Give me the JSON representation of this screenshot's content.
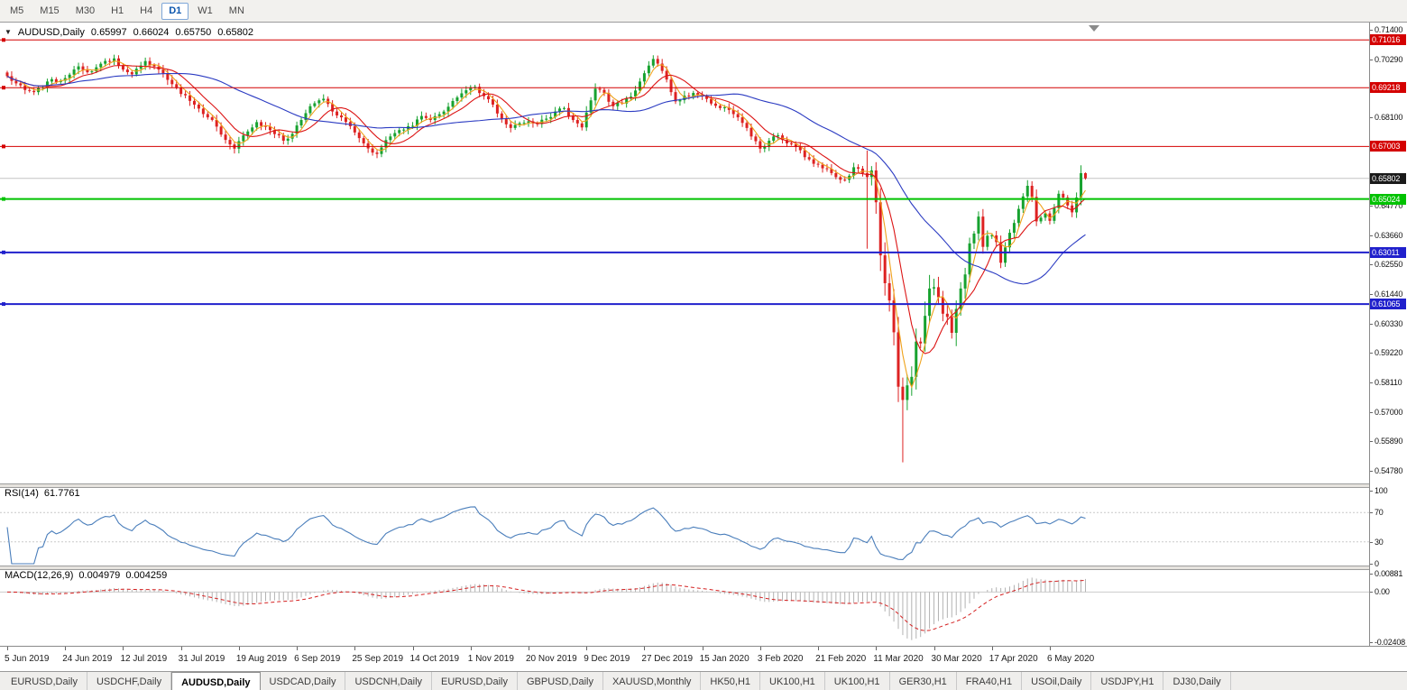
{
  "toolbar": {
    "periods": [
      "M5",
      "M15",
      "M30",
      "H1",
      "H4",
      "D1",
      "W1",
      "MN"
    ],
    "active_period": "D1"
  },
  "chart": {
    "symbol_label": "AUDUSD,Daily",
    "ohlc": {
      "open": "0.65997",
      "high": "0.66024",
      "low": "0.65750",
      "close": "0.65802"
    },
    "price_axis_ticks": [
      "0.71400",
      "0.70290",
      "0.68100",
      "0.64770",
      "0.63660",
      "0.62550",
      "0.61440",
      "0.60330",
      "0.59220",
      "0.58110",
      "0.57000",
      "0.55890",
      "0.54780"
    ],
    "hlines": [
      {
        "label": "0.71016",
        "value": 0.71016,
        "color": "#d40000",
        "thickness": 1
      },
      {
        "label": "0.69218",
        "value": 0.69218,
        "color": "#d40000",
        "thickness": 1
      },
      {
        "label": "0.67003",
        "value": 0.67003,
        "color": "#d40000",
        "thickness": 1
      },
      {
        "label": "0.65024",
        "value": 0.65024,
        "color": "#00c200",
        "thickness": 2
      },
      {
        "label": "0.63011",
        "value": 0.63011,
        "color": "#2020cc",
        "thickness": 2
      },
      {
        "label": "0.61065",
        "value": 0.61065,
        "color": "#2020cc",
        "thickness": 2
      }
    ],
    "current_price": {
      "label": "0.65802",
      "value": 0.65802,
      "badge_color": "#1a1a1a",
      "line_color": "#c4c4c4"
    },
    "time_axis_labels": [
      "5 Jun 2019",
      "24 Jun 2019",
      "12 Jul 2019",
      "31 Jul 2019",
      "19 Aug 2019",
      "6 Sep 2019",
      "25 Sep 2019",
      "14 Oct 2019",
      "1 Nov 2019",
      "20 Nov 2019",
      "9 Dec 2019",
      "27 Dec 2019",
      "15 Jan 2020",
      "3 Feb 2020",
      "21 Feb 2020",
      "11 Mar 2020",
      "30 Mar 2020",
      "17 Apr 2020",
      "6 May 2020"
    ]
  },
  "rsi": {
    "label": "RSI(14)",
    "value": "61.7761",
    "color": "#4a7ebb",
    "ticks": [
      {
        "label": "100",
        "value": 100
      },
      {
        "label": "70",
        "value": 70
      },
      {
        "label": "30",
        "value": 30
      },
      {
        "label": "0",
        "value": 0
      }
    ],
    "level_lines": [
      70,
      30
    ]
  },
  "macd": {
    "label": "MACD(12,26,9)",
    "value": "0.004979",
    "signal_value": "0.004259",
    "histogram_color": "#b2b2b2",
    "signal_color": "#d42020",
    "ticks": [
      {
        "label": "0.00881",
        "value": 0.00881
      },
      {
        "label": "0.00",
        "value": 0
      },
      {
        "label": "-0.02408",
        "value": -0.02408
      }
    ]
  },
  "tabs": {
    "active_index": 2,
    "items": [
      "EURUSD,Daily",
      "USDCHF,Daily",
      "AUDUSD,Daily",
      "USDCAD,Daily",
      "USDCNH,Daily",
      "EURUSD,Daily",
      "GBPUSD,Daily",
      "XAUUSD,Monthly",
      "HK50,H1",
      "UK100,H1",
      "UK100,H1",
      "GER30,H1",
      "FRA40,H1",
      "USOil,Daily",
      "USDJPY,H1",
      "DJ30,Daily"
    ],
    "active": "AUDUSD,Daily"
  },
  "chart_data": {
    "type": "candlestick",
    "symbol": "AUDUSD",
    "timeframe": "Daily",
    "title": "AUDUSD,Daily",
    "last_bar": {
      "open": 0.65997,
      "high": 0.66024,
      "low": 0.6575,
      "close": 0.65802
    },
    "bar_count": 243,
    "bars_per_time_tick": 13,
    "price_range": {
      "axis_top": 0.714,
      "axis_bottom": 0.5478
    },
    "horizontal_levels": [
      0.71016,
      0.69218,
      0.67003,
      0.65024,
      0.63011,
      0.61065
    ],
    "rsi_reading": 61.7761,
    "macd_reading": 0.004979,
    "macd_signal_reading": 0.004259,
    "up_color": "#17a22f",
    "down_color": "#dd2222",
    "moving_averages": [
      {
        "period": 4,
        "color": "#efa21a"
      },
      {
        "period": 9,
        "color": "#dc1414"
      },
      {
        "period": 34,
        "color": "#2b3bc2"
      }
    ],
    "rsi_period": 14,
    "macd_params": [
      12,
      26,
      9
    ],
    "overrides": {
      "193": {
        "high": 0.6685,
        "low": 0.6315
      },
      "201": {
        "low": 0.551
      },
      "242": {
        "high": 0.66024,
        "low": 0.6575
      }
    },
    "close_path": [
      [
        0,
        0.6965
      ],
      [
        2,
        0.6938
      ],
      [
        4,
        0.6913
      ],
      [
        6,
        0.6905
      ],
      [
        9,
        0.6945
      ],
      [
        13,
        0.6958
      ],
      [
        16,
        0.7002
      ],
      [
        18,
        0.698
      ],
      [
        21,
        0.7012
      ],
      [
        24,
        0.7032
      ],
      [
        26,
        0.699
      ],
      [
        28,
        0.6972
      ],
      [
        31,
        0.7022
      ],
      [
        34,
        0.699
      ],
      [
        37,
        0.6935
      ],
      [
        39,
        0.6898
      ],
      [
        41,
        0.6872
      ],
      [
        43,
        0.6843
      ],
      [
        45,
        0.681
      ],
      [
        47,
        0.6775
      ],
      [
        49,
        0.6725
      ],
      [
        51,
        0.6692
      ],
      [
        53,
        0.6742
      ],
      [
        56,
        0.6792
      ],
      [
        59,
        0.6762
      ],
      [
        62,
        0.6722
      ],
      [
        64,
        0.6748
      ],
      [
        66,
        0.68
      ],
      [
        68,
        0.6852
      ],
      [
        71,
        0.688
      ],
      [
        73,
        0.6832
      ],
      [
        75,
        0.681
      ],
      [
        78,
        0.6753
      ],
      [
        80,
        0.6712
      ],
      [
        83,
        0.6672
      ],
      [
        86,
        0.6738
      ],
      [
        88,
        0.6762
      ],
      [
        91,
        0.6778
      ],
      [
        93,
        0.6815
      ],
      [
        95,
        0.68
      ],
      [
        97,
        0.6822
      ],
      [
        99,
        0.685
      ],
      [
        101,
        0.6885
      ],
      [
        103,
        0.6912
      ],
      [
        105,
        0.6925
      ],
      [
        107,
        0.689
      ],
      [
        109,
        0.6858
      ],
      [
        111,
        0.6805
      ],
      [
        113,
        0.677
      ],
      [
        115,
        0.6788
      ],
      [
        117,
        0.6795
      ],
      [
        119,
        0.6785
      ],
      [
        121,
        0.6805
      ],
      [
        123,
        0.6832
      ],
      [
        125,
        0.6845
      ],
      [
        127,
        0.68
      ],
      [
        129,
        0.6772
      ],
      [
        130,
        0.6828
      ],
      [
        132,
        0.6918
      ],
      [
        134,
        0.6902
      ],
      [
        136,
        0.6852
      ],
      [
        138,
        0.6862
      ],
      [
        140,
        0.6888
      ],
      [
        142,
        0.6945
      ],
      [
        144,
        0.7005
      ],
      [
        145,
        0.703
      ],
      [
        147,
        0.6985
      ],
      [
        149,
        0.6905
      ],
      [
        150,
        0.687
      ],
      [
        152,
        0.6892
      ],
      [
        154,
        0.6902
      ],
      [
        156,
        0.689
      ],
      [
        158,
        0.6862
      ],
      [
        160,
        0.6845
      ],
      [
        162,
        0.6838
      ],
      [
        164,
        0.681
      ],
      [
        166,
        0.677
      ],
      [
        168,
        0.672
      ],
      [
        169,
        0.6692
      ],
      [
        171,
        0.6722
      ],
      [
        173,
        0.6742
      ],
      [
        175,
        0.6712
      ],
      [
        177,
        0.6698
      ],
      [
        179,
        0.666
      ],
      [
        181,
        0.6635
      ],
      [
        183,
        0.6618
      ],
      [
        185,
        0.66
      ],
      [
        187,
        0.6575
      ],
      [
        189,
        0.659
      ],
      [
        190,
        0.6622
      ],
      [
        192,
        0.66
      ],
      [
        193,
        0.6585
      ],
      [
        194,
        0.661
      ],
      [
        195,
        0.649
      ],
      [
        196,
        0.629
      ],
      [
        197,
        0.6185
      ],
      [
        198,
        0.612
      ],
      [
        199,
        0.6
      ],
      [
        200,
        0.5795
      ],
      [
        201,
        0.5745
      ],
      [
        202,
        0.58
      ],
      [
        203,
        0.5832
      ],
      [
        204,
        0.5965
      ],
      [
        205,
        0.5958
      ],
      [
        206,
        0.6062
      ],
      [
        207,
        0.6165
      ],
      [
        208,
        0.617
      ],
      [
        209,
        0.6132
      ],
      [
        210,
        0.607
      ],
      [
        211,
        0.6058
      ],
      [
        212,
        0.5998
      ],
      [
        213,
        0.6088
      ],
      [
        214,
        0.6165
      ],
      [
        215,
        0.6218
      ],
      [
        216,
        0.6335
      ],
      [
        217,
        0.6372
      ],
      [
        218,
        0.6436
      ],
      [
        219,
        0.6322
      ],
      [
        220,
        0.6364
      ],
      [
        221,
        0.6365
      ],
      [
        222,
        0.634
      ],
      [
        223,
        0.6262
      ],
      [
        224,
        0.632
      ],
      [
        225,
        0.6375
      ],
      [
        226,
        0.6412
      ],
      [
        227,
        0.6465
      ],
      [
        228,
        0.6512
      ],
      [
        229,
        0.6552
      ],
      [
        230,
        0.651
      ],
      [
        231,
        0.6418
      ],
      [
        232,
        0.6432
      ],
      [
        233,
        0.6448
      ],
      [
        234,
        0.642
      ],
      [
        235,
        0.6468
      ],
      [
        236,
        0.6522
      ],
      [
        237,
        0.6508
      ],
      [
        238,
        0.6478
      ],
      [
        239,
        0.6452
      ],
      [
        240,
        0.6508
      ],
      [
        241,
        0.65997
      ],
      [
        242,
        0.65802
      ]
    ]
  }
}
